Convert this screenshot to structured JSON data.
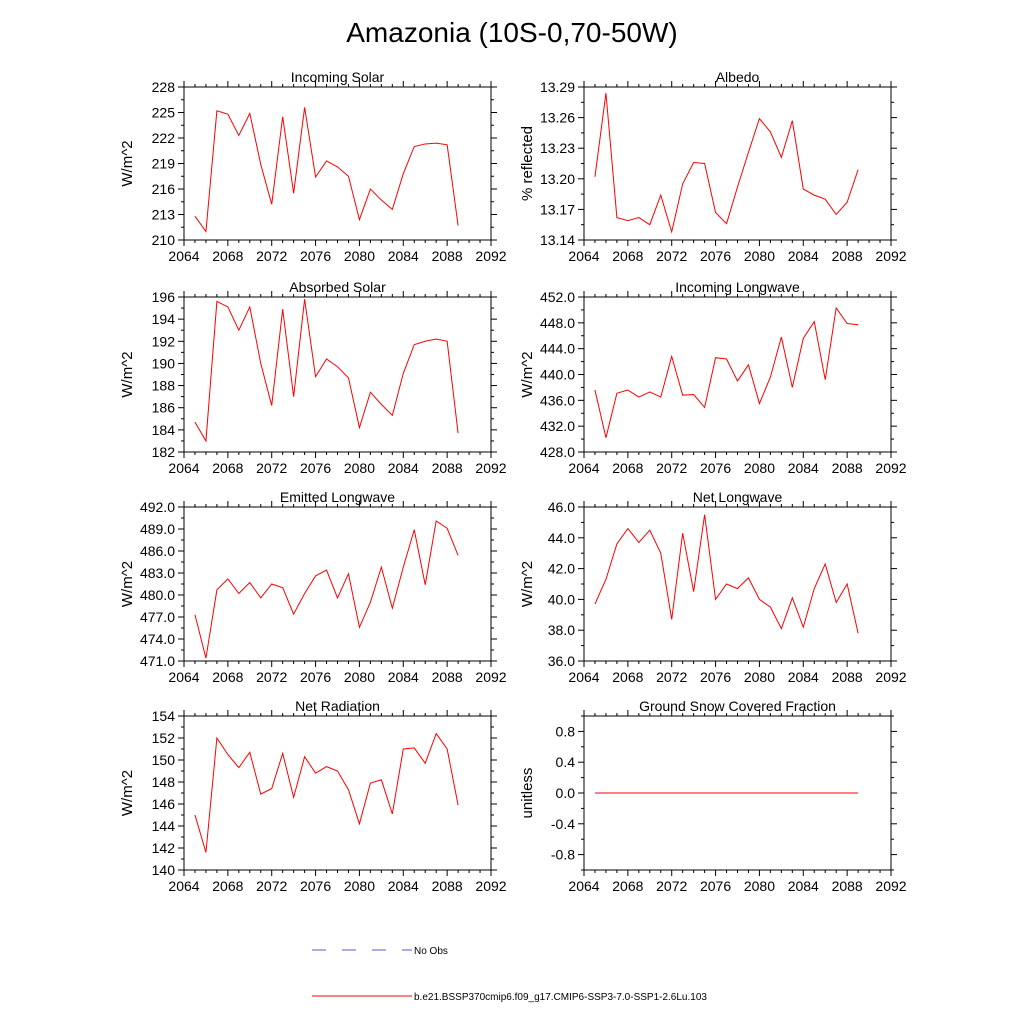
{
  "figure": {
    "title": "Amazonia (10S-0,70-50W)",
    "legend": {
      "obs_label": "No Obs",
      "model_label": "b.e21.BSSP370cmip6.f09_g17.CMIP6-SSP3-7.0-SSP1-2.6Lu.103",
      "obs_color": "#5a5ad8",
      "model_color": "#ff0000"
    }
  },
  "chart_data": [
    {
      "type": "line",
      "title": "Incoming Solar",
      "ylabel": "W/m^2",
      "xlim": [
        2064,
        2092
      ],
      "ylim": [
        210,
        228
      ],
      "xticks": [
        "2064",
        "2068",
        "2072",
        "2076",
        "2080",
        "2084",
        "2088",
        "2092"
      ],
      "yticks": [
        "210",
        "213",
        "216",
        "219",
        "222",
        "225",
        "228"
      ],
      "x": [
        2065,
        2066,
        2067,
        2068,
        2069,
        2070,
        2071,
        2072,
        2073,
        2074,
        2075,
        2076,
        2077,
        2078,
        2079,
        2080,
        2081,
        2082,
        2083,
        2084,
        2085,
        2086,
        2087,
        2088,
        2089
      ],
      "series": [
        {
          "name": "b.e21.BSSP370cmip6.f09_g17.CMIP6-SSP3-7.0-SSP1-2.6Lu.103",
          "color": "#ff0000",
          "values": [
            212.8,
            211.0,
            225.2,
            224.8,
            222.3,
            224.9,
            218.9,
            214.2,
            224.5,
            215.5,
            225.6,
            217.4,
            219.3,
            218.6,
            217.5,
            212.4,
            216.0,
            214.7,
            213.6,
            217.8,
            221.0,
            221.3,
            221.4,
            221.2,
            211.7
          ]
        }
      ]
    },
    {
      "type": "line",
      "title": "Albedo",
      "ylabel": "% reflected",
      "xlim": [
        2064,
        2092
      ],
      "ylim": [
        13.14,
        13.29
      ],
      "xticks": [
        "2064",
        "2068",
        "2072",
        "2076",
        "2080",
        "2084",
        "2088",
        "2092"
      ],
      "yticks": [
        "13.14",
        "13.17",
        "13.20",
        "13.23",
        "13.26",
        "13.29"
      ],
      "x": [
        2065,
        2066,
        2067,
        2068,
        2069,
        2070,
        2071,
        2072,
        2073,
        2074,
        2075,
        2076,
        2077,
        2078,
        2079,
        2080,
        2081,
        2082,
        2083,
        2084,
        2085,
        2086,
        2087,
        2088,
        2089
      ],
      "series": [
        {
          "name": "b.e21.BSSP370cmip6.f09_g17.CMIP6-SSP3-7.0-SSP1-2.6Lu.103",
          "color": "#ff0000",
          "values": [
            13.202,
            13.284,
            13.162,
            13.159,
            13.162,
            13.155,
            13.184,
            13.148,
            13.195,
            13.216,
            13.215,
            13.167,
            13.156,
            13.192,
            13.226,
            13.259,
            13.246,
            13.221,
            13.257,
            13.19,
            13.184,
            13.18,
            13.165,
            13.177,
            13.209
          ]
        }
      ]
    },
    {
      "type": "line",
      "title": "Absorbed Solar",
      "ylabel": "W/m^2",
      "xlim": [
        2064,
        2092
      ],
      "ylim": [
        182,
        196
      ],
      "xticks": [
        "2064",
        "2068",
        "2072",
        "2076",
        "2080",
        "2084",
        "2088",
        "2092"
      ],
      "yticks": [
        "182",
        "184",
        "186",
        "188",
        "190",
        "192",
        "194",
        "196"
      ],
      "x": [
        2065,
        2066,
        2067,
        2068,
        2069,
        2070,
        2071,
        2072,
        2073,
        2074,
        2075,
        2076,
        2077,
        2078,
        2079,
        2080,
        2081,
        2082,
        2083,
        2084,
        2085,
        2086,
        2087,
        2088,
        2089
      ],
      "series": [
        {
          "name": "b.e21.BSSP370cmip6.f09_g17.CMIP6-SSP3-7.0-SSP1-2.6Lu.103",
          "color": "#ff0000",
          "values": [
            184.7,
            183.0,
            195.6,
            195.1,
            193.0,
            195.1,
            190.0,
            186.2,
            194.9,
            187.0,
            195.8,
            188.8,
            190.4,
            189.7,
            188.7,
            184.2,
            187.4,
            186.3,
            185.3,
            189.1,
            191.7,
            192.0,
            192.2,
            192.0,
            183.7
          ]
        }
      ]
    },
    {
      "type": "line",
      "title": "Incoming Longwave",
      "ylabel": "W/m^2",
      "xlim": [
        2064,
        2092
      ],
      "ylim": [
        428.0,
        452.0
      ],
      "xticks": [
        "2064",
        "2068",
        "2072",
        "2076",
        "2080",
        "2084",
        "2088",
        "2092"
      ],
      "yticks": [
        "428.0",
        "432.0",
        "436.0",
        "440.0",
        "444.0",
        "448.0",
        "452.0"
      ],
      "x": [
        2065,
        2066,
        2067,
        2068,
        2069,
        2070,
        2071,
        2072,
        2073,
        2074,
        2075,
        2076,
        2077,
        2078,
        2079,
        2080,
        2081,
        2082,
        2083,
        2084,
        2085,
        2086,
        2087,
        2088,
        2089
      ],
      "series": [
        {
          "name": "b.e21.BSSP370cmip6.f09_g17.CMIP6-SSP3-7.0-SSP1-2.6Lu.103",
          "color": "#ff0000",
          "values": [
            437.6,
            430.2,
            437.1,
            437.6,
            436.5,
            437.3,
            436.5,
            442.8,
            436.8,
            436.9,
            434.9,
            442.6,
            442.4,
            439.0,
            441.5,
            435.5,
            439.6,
            445.8,
            438.0,
            445.6,
            448.2,
            439.2,
            450.3,
            447.9,
            447.7
          ]
        }
      ]
    },
    {
      "type": "line",
      "title": "Emitted Longwave",
      "ylabel": "W/m^2",
      "xlim": [
        2064,
        2092
      ],
      "ylim": [
        471.0,
        492.0
      ],
      "xticks": [
        "2064",
        "2068",
        "2072",
        "2076",
        "2080",
        "2084",
        "2088",
        "2092"
      ],
      "yticks": [
        "471.0",
        "474.0",
        "477.0",
        "480.0",
        "483.0",
        "486.0",
        "489.0",
        "492.0"
      ],
      "x": [
        2065,
        2066,
        2067,
        2068,
        2069,
        2070,
        2071,
        2072,
        2073,
        2074,
        2075,
        2076,
        2077,
        2078,
        2079,
        2080,
        2081,
        2082,
        2083,
        2084,
        2085,
        2086,
        2087,
        2088,
        2089
      ],
      "series": [
        {
          "name": "b.e21.BSSP370cmip6.f09_g17.CMIP6-SSP3-7.0-SSP1-2.6Lu.103",
          "color": "#ff0000",
          "values": [
            477.3,
            471.4,
            480.7,
            482.2,
            480.2,
            481.7,
            479.6,
            481.5,
            481.0,
            477.4,
            480.2,
            482.6,
            483.4,
            479.6,
            482.9,
            475.6,
            479.0,
            483.8,
            478.2,
            483.8,
            488.9,
            481.4,
            490.1,
            489.1,
            485.4
          ]
        }
      ]
    },
    {
      "type": "line",
      "title": "Net Longwave",
      "ylabel": "W/m^2",
      "xlim": [
        2064,
        2092
      ],
      "ylim": [
        36.0,
        46.0
      ],
      "xticks": [
        "2064",
        "2068",
        "2072",
        "2076",
        "2080",
        "2084",
        "2088",
        "2092"
      ],
      "yticks": [
        "36.0",
        "38.0",
        "40.0",
        "42.0",
        "44.0",
        "46.0"
      ],
      "x": [
        2065,
        2066,
        2067,
        2068,
        2069,
        2070,
        2071,
        2072,
        2073,
        2074,
        2075,
        2076,
        2077,
        2078,
        2079,
        2080,
        2081,
        2082,
        2083,
        2084,
        2085,
        2086,
        2087,
        2088,
        2089
      ],
      "series": [
        {
          "name": "b.e21.BSSP370cmip6.f09_g17.CMIP6-SSP3-7.0-SSP1-2.6Lu.103",
          "color": "#ff0000",
          "values": [
            39.7,
            41.3,
            43.6,
            44.6,
            43.7,
            44.5,
            43.0,
            38.7,
            44.3,
            40.5,
            45.5,
            40.0,
            41.0,
            40.7,
            41.4,
            40.0,
            39.5,
            38.1,
            40.1,
            38.2,
            40.7,
            42.3,
            39.8,
            41.0,
            37.8
          ]
        }
      ]
    },
    {
      "type": "line",
      "title": "Net Radiation",
      "ylabel": "W/m^2",
      "xlim": [
        2064,
        2092
      ],
      "ylim": [
        140,
        154
      ],
      "xticks": [
        "2064",
        "2068",
        "2072",
        "2076",
        "2080",
        "2084",
        "2088",
        "2092"
      ],
      "yticks": [
        "140",
        "142",
        "144",
        "146",
        "148",
        "150",
        "152",
        "154"
      ],
      "x": [
        2065,
        2066,
        2067,
        2068,
        2069,
        2070,
        2071,
        2072,
        2073,
        2074,
        2075,
        2076,
        2077,
        2078,
        2079,
        2080,
        2081,
        2082,
        2083,
        2084,
        2085,
        2086,
        2087,
        2088,
        2089
      ],
      "series": [
        {
          "name": "b.e21.BSSP370cmip6.f09_g17.CMIP6-SSP3-7.0-SSP1-2.6Lu.103",
          "color": "#ff0000",
          "values": [
            145.0,
            141.6,
            152.0,
            150.5,
            149.3,
            150.7,
            146.9,
            147.4,
            150.6,
            146.6,
            150.3,
            148.8,
            149.4,
            149.0,
            147.3,
            144.2,
            147.9,
            148.2,
            145.1,
            151.0,
            151.1,
            149.7,
            152.4,
            151.0,
            145.9
          ]
        }
      ]
    },
    {
      "type": "line",
      "title": "Ground Snow Covered Fraction",
      "ylabel": "unitless",
      "xlim": [
        2064,
        2092
      ],
      "ylim": [
        -1.0,
        1.0
      ],
      "xticks": [
        "2064",
        "2068",
        "2072",
        "2076",
        "2080",
        "2084",
        "2088",
        "2092"
      ],
      "yticks": [
        "-0.8",
        "-0.4",
        "0.0",
        "0.4",
        "0.8"
      ],
      "x": [
        2065,
        2066,
        2067,
        2068,
        2069,
        2070,
        2071,
        2072,
        2073,
        2074,
        2075,
        2076,
        2077,
        2078,
        2079,
        2080,
        2081,
        2082,
        2083,
        2084,
        2085,
        2086,
        2087,
        2088,
        2089
      ],
      "series": [
        {
          "name": "b.e21.BSSP370cmip6.f09_g17.CMIP6-SSP3-7.0-SSP1-2.6Lu.103",
          "color": "#ff0000",
          "values": [
            0,
            0,
            0,
            0,
            0,
            0,
            0,
            0,
            0,
            0,
            0,
            0,
            0,
            0,
            0,
            0,
            0,
            0,
            0,
            0,
            0,
            0,
            0,
            0,
            0
          ]
        }
      ]
    }
  ]
}
